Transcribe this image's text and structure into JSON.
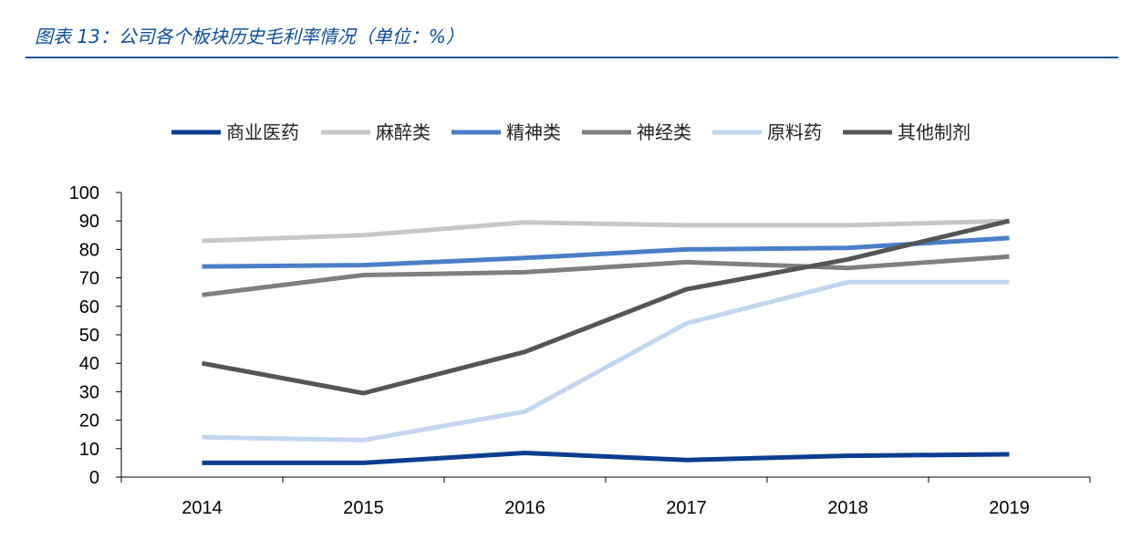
{
  "figure": {
    "title": "图表 13：公司各个板块历史毛利率情况（单位：%）"
  },
  "chart_data": {
    "type": "line",
    "categories": [
      "2014",
      "2015",
      "2016",
      "2017",
      "2018",
      "2019"
    ],
    "ylim": [
      0,
      100
    ],
    "yticks": [
      0,
      10,
      20,
      30,
      40,
      50,
      60,
      70,
      80,
      90,
      100
    ],
    "grid": false,
    "legend_position": "top",
    "series": [
      {
        "name": "商业医药",
        "color": "#0b3e8f",
        "values": [
          5,
          5,
          8.5,
          6,
          7.5,
          8
        ]
      },
      {
        "name": "麻醉类",
        "color": "#c7c7c7",
        "values": [
          83,
          85,
          89.5,
          88.5,
          88.5,
          90
        ]
      },
      {
        "name": "精神类",
        "color": "#4a7fc8",
        "values": [
          74,
          74.5,
          77,
          80,
          80.5,
          84
        ]
      },
      {
        "name": "神经类",
        "color": "#7f7f7f",
        "values": [
          64,
          71,
          72,
          75.5,
          73.5,
          77.5
        ]
      },
      {
        "name": "原料药",
        "color": "#c3d6ef",
        "values": [
          14,
          13,
          23,
          54,
          68.5,
          68.5
        ]
      },
      {
        "name": "其他制剂",
        "color": "#555555",
        "values": [
          40,
          29.5,
          44,
          66,
          76.5,
          90
        ]
      }
    ]
  }
}
